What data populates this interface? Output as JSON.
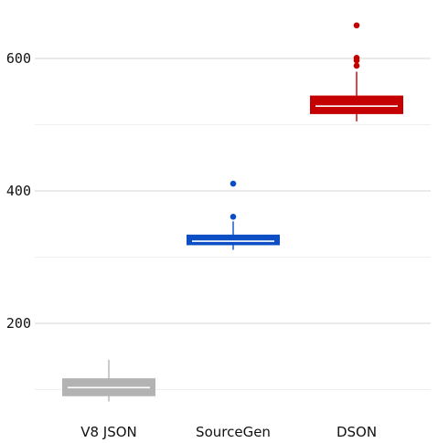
{
  "chart_data": {
    "type": "box",
    "title": "",
    "xlabel": "",
    "ylabel": "",
    "categories": [
      "V8 JSON",
      "SourceGen",
      "DSON"
    ],
    "ylim": [
      70,
      670
    ],
    "y_ticks": [
      200,
      400,
      600
    ],
    "y_minor_ticks": [
      100,
      300,
      500
    ],
    "grid": true,
    "legend": "none",
    "boxes": [
      {
        "category": "V8 JSON",
        "color": "#b3b3b3",
        "median_color": "#ffffff",
        "min": 82,
        "q1": 90,
        "median": 103,
        "q3": 117,
        "max": 145,
        "outliers": []
      },
      {
        "category": "SourceGen",
        "color": "#0c4fc4",
        "median_color": "#ffffff",
        "min": 311,
        "q1": 318,
        "median": 324,
        "q3": 334,
        "max": 354,
        "outliers": [
          361,
          411
        ]
      },
      {
        "category": "DSON",
        "color": "#c40000",
        "median_color": "#ffffff",
        "min": 505,
        "q1": 516,
        "median": 528,
        "q3": 544,
        "max": 580,
        "outliers": [
          589,
          597,
          601,
          650
        ]
      }
    ]
  }
}
